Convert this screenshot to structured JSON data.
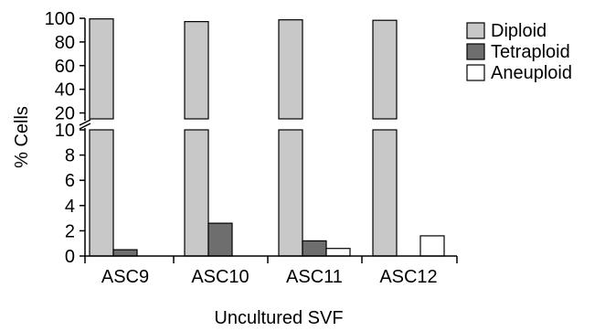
{
  "chart_data": {
    "type": "bar",
    "categories": [
      "ASC9",
      "ASC10",
      "ASC11",
      "ASC12"
    ],
    "series": [
      {
        "name": "Diploid",
        "color": "#c8c8c8",
        "values": [
          99.5,
          97.2,
          98.7,
          98.3
        ]
      },
      {
        "name": "Tetraploid",
        "color": "#6e6e6e",
        "values": [
          0.5,
          2.6,
          1.2,
          0
        ]
      },
      {
        "name": "Aneuploid",
        "color": "#ffffff",
        "values": [
          0,
          0,
          0.6,
          1.6
        ]
      }
    ],
    "xlabel": "Uncultured SVF",
    "ylabel": "% Cells",
    "broken_axis": {
      "lower_range": [
        0,
        10
      ],
      "lower_ticks": [
        0,
        2,
        4,
        6,
        8,
        10
      ],
      "upper_range": [
        15,
        100
      ],
      "upper_ticks": [
        20,
        40,
        60,
        80,
        100
      ]
    },
    "legend_position": "top-right",
    "grid": false
  }
}
